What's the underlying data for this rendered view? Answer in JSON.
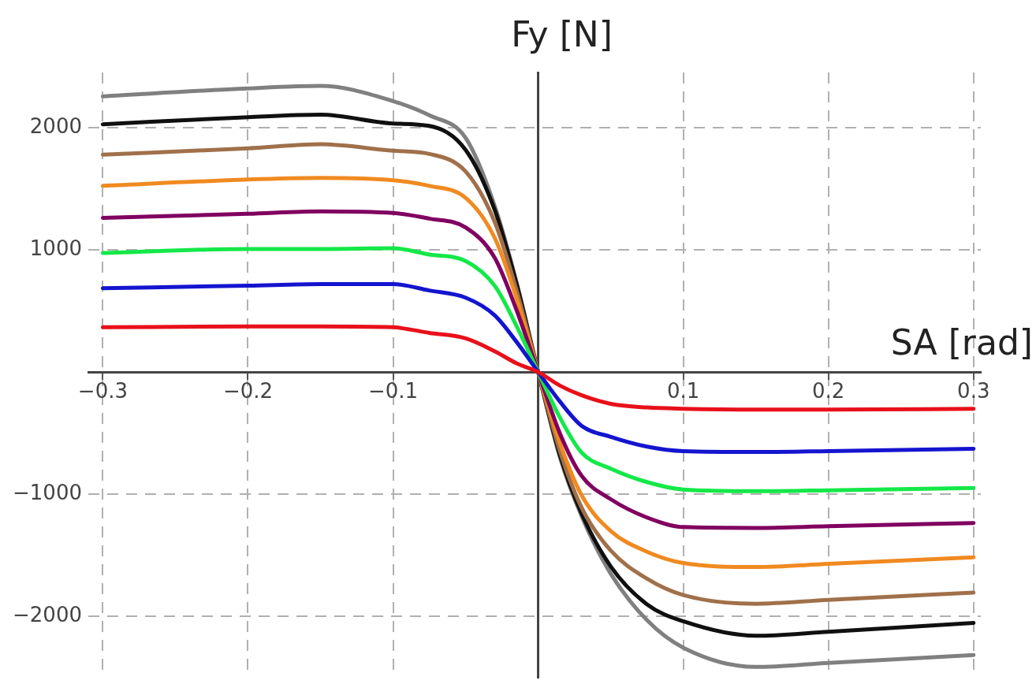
{
  "chart_data": {
    "type": "line",
    "xlabel": "SA [rad]",
    "ylabel": "Fy [N]",
    "x": [
      -0.3,
      -0.2,
      -0.15,
      -0.1,
      -0.075,
      -0.05,
      -0.03,
      -0.015,
      0,
      0.015,
      0.03,
      0.05,
      0.075,
      0.1,
      0.15,
      0.2,
      0.3
    ],
    "series": [
      {
        "color": "#e8101a",
        "values": [
          366,
          373,
          373,
          366,
          320,
          275,
          170,
          72,
          0,
          -111,
          -190,
          -260,
          -290,
          -300,
          -307,
          -307,
          -301
        ]
      },
      {
        "color": "#1414d0",
        "values": [
          686,
          706,
          719,
          719,
          667,
          608,
          464,
          248,
          0,
          -242,
          -440,
          -530,
          -610,
          -647,
          -654,
          -647,
          -627
        ]
      },
      {
        "color": "#14e848",
        "values": [
          974,
          1007,
          1007,
          1013,
          961,
          908,
          706,
          379,
          0,
          -373,
          -660,
          -790,
          -900,
          -961,
          -974,
          -967,
          -948
        ]
      },
      {
        "color": "#800060",
        "values": [
          1261,
          1294,
          1314,
          1301,
          1255,
          1183,
          935,
          510,
          0,
          -503,
          -850,
          -1040,
          -1190,
          -1268,
          -1275,
          -1261,
          -1235
        ]
      },
      {
        "color": "#f08a20",
        "values": [
          1523,
          1575,
          1588,
          1569,
          1523,
          1425,
          1098,
          608,
          0,
          -582,
          -1010,
          -1300,
          -1470,
          -1562,
          -1595,
          -1569,
          -1516
        ]
      },
      {
        "color": "#a0704a",
        "values": [
          1778,
          1830,
          1863,
          1810,
          1784,
          1640,
          1229,
          673,
          0,
          -647,
          -1110,
          -1460,
          -1690,
          -1824,
          -1895,
          -1863,
          -1804
        ]
      },
      {
        "color": "#101010",
        "values": [
          2026,
          2085,
          2105,
          2033,
          2013,
          1817,
          1327,
          725,
          0,
          -680,
          -1160,
          -1590,
          -1900,
          -2039,
          -2157,
          -2124,
          -2052
        ]
      },
      {
        "color": "#808080",
        "values": [
          2255,
          2320,
          2340,
          2216,
          2100,
          1915,
          1359,
          739,
          0,
          -699,
          -1180,
          -1650,
          -2030,
          -2255,
          -2412,
          -2379,
          -2314
        ]
      }
    ],
    "xlim": [
      -0.31,
      0.305
    ],
    "ylim": [
      -2500,
      2450
    ],
    "xticks": [
      -0.3,
      -0.2,
      -0.1,
      0.1,
      0.2,
      0.3
    ],
    "yticks": [
      -2000,
      -1000,
      1000,
      2000
    ],
    "grid": true,
    "legend": false,
    "marker": "none",
    "line_style": "solid"
  }
}
